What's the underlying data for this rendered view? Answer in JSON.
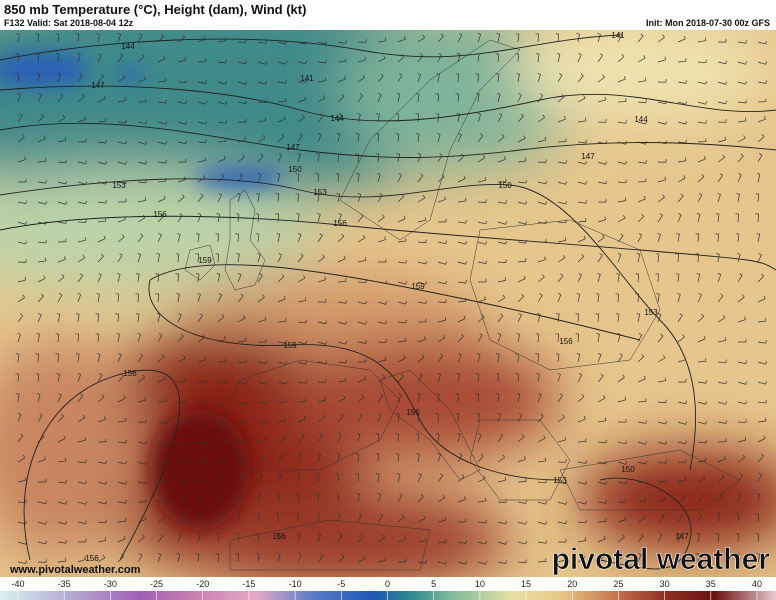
{
  "header": {
    "title": "850 mb Temperature (°C), Height (dam), Wind (kt)",
    "valid": "F132 Valid: Sat 2018-08-04 12z",
    "init": "Init: Mon 2018-07-30 00z GFS"
  },
  "map": {
    "contour_labels": [
      144,
      141,
      147,
      144,
      147,
      150,
      153,
      153,
      156,
      156,
      159,
      159,
      159,
      156,
      156,
      156,
      153,
      150,
      147,
      144,
      141,
      150,
      153,
      147,
      156,
      156
    ]
  },
  "watermark": {
    "url": "www.pivotalweather.com",
    "brand": "pivotal weather"
  },
  "colorbar": {
    "ticks": [
      -40,
      -35,
      -30,
      -25,
      -20,
      -15,
      -10,
      -5,
      0,
      5,
      10,
      15,
      20,
      25,
      30,
      35,
      40
    ]
  }
}
